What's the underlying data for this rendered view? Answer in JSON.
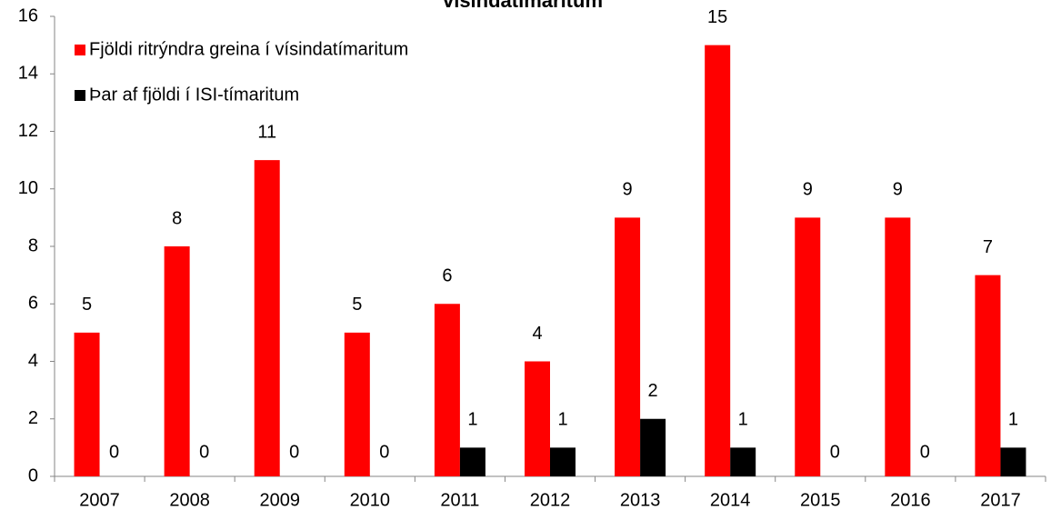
{
  "chart_data": {
    "type": "bar",
    "title": "vísindatímaritum",
    "categories": [
      "2007",
      "2008",
      "2009",
      "2010",
      "2011",
      "2012",
      "2013",
      "2014",
      "2015",
      "2016",
      "2017"
    ],
    "series": [
      {
        "name": "Fjöldi ritrýndra greina í vísindatímaritum",
        "color": "#ff0000",
        "values": [
          5,
          8,
          11,
          5,
          6,
          4,
          9,
          15,
          9,
          9,
          7
        ]
      },
      {
        "name": "Þar af fjöldi í ISI-tímaritum",
        "color": "#000000",
        "values": [
          0,
          0,
          0,
          0,
          1,
          1,
          2,
          1,
          0,
          0,
          1
        ]
      }
    ],
    "ylim": [
      0,
      16
    ],
    "yticks": [
      0,
      2,
      4,
      6,
      8,
      10,
      12,
      14,
      16
    ],
    "grid": false,
    "legend": "upper left"
  }
}
